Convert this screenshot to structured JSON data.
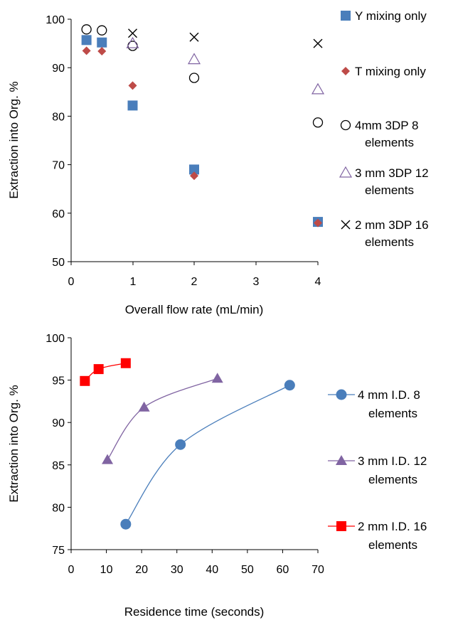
{
  "chart_data": [
    {
      "type": "scatter",
      "xlabel": "Overall flow rate (mL/min)",
      "ylabel": "Extraction into Org. %",
      "xlim": [
        0,
        4
      ],
      "ylim": [
        50,
        100
      ],
      "xtick_labels": [
        "0",
        "1",
        "2",
        "3",
        "4"
      ],
      "ytick_labels": [
        "50",
        "60",
        "70",
        "80",
        "90",
        "100"
      ],
      "x_axis_note": "x tick labels run 0,1,2,3,4 with the label 4 aligned to flow rate 4 (axis drawn with increasing spacing)",
      "legend_position": "right",
      "grid": false,
      "series": [
        {
          "name": "Y mixing only",
          "marker": "square",
          "color": "#4a7ebb",
          "points": [
            [
              0.25,
              95.7
            ],
            [
              0.5,
              95.2
            ],
            [
              1,
              82.2
            ],
            [
              2,
              69.0
            ],
            [
              4,
              58.2
            ]
          ]
        },
        {
          "name": "T mixing only",
          "marker": "diamond",
          "color": "#be4b48",
          "points": [
            [
              0.25,
              93.5
            ],
            [
              0.5,
              93.4
            ],
            [
              1,
              86.3
            ],
            [
              2,
              67.7
            ],
            [
              4,
              58.0
            ]
          ]
        },
        {
          "name": "4mm 3DP 8 elements",
          "marker": "circle-open",
          "color": "#000000",
          "points": [
            [
              0.25,
              97.9
            ],
            [
              0.5,
              97.7
            ],
            [
              1,
              94.5
            ],
            [
              2,
              87.9
            ],
            [
              4,
              78.7
            ]
          ]
        },
        {
          "name": "3 mm 3DP 12 elements",
          "marker": "triangle-open",
          "color": "#8064a2",
          "points": [
            [
              1,
              95.0
            ],
            [
              2,
              91.7
            ],
            [
              4,
              85.5
            ]
          ]
        },
        {
          "name": "2 mm 3DP 16 elements",
          "marker": "x",
          "color": "#000000",
          "points": [
            [
              1,
              97.1
            ],
            [
              2,
              96.3
            ],
            [
              4,
              95.0
            ]
          ]
        }
      ]
    },
    {
      "type": "line",
      "xlabel": "Residence time (seconds)",
      "ylabel": "Extraction into Org. %",
      "xlim": [
        0,
        70
      ],
      "ylim": [
        75,
        100
      ],
      "xtick_labels": [
        "0",
        "10",
        "20",
        "30",
        "40",
        "50",
        "60",
        "70"
      ],
      "ytick_labels": [
        "75",
        "80",
        "85",
        "90",
        "95",
        "100"
      ],
      "legend_position": "right",
      "grid": false,
      "smooth": true,
      "series": [
        {
          "name": "4 mm I.D. 8 elements",
          "marker": "circle",
          "color": "#4a7ebb",
          "line_color": "#4a7ebb",
          "points": [
            [
              15.5,
              78.0
            ],
            [
              31,
              87.4
            ],
            [
              62,
              94.4
            ]
          ]
        },
        {
          "name": "3 mm I.D. 12 elements",
          "marker": "triangle",
          "color": "#8064a2",
          "line_color": "#8064a2",
          "points": [
            [
              10.3,
              85.6
            ],
            [
              20.7,
              91.8
            ],
            [
              41.5,
              95.2
            ]
          ]
        },
        {
          "name": "2 mm I.D. 16 elements",
          "marker": "square",
          "color": "#ff0000",
          "line_color": "#ff0000",
          "points": [
            [
              3.9,
              94.9
            ],
            [
              7.8,
              96.3
            ],
            [
              15.5,
              97.0
            ]
          ]
        }
      ]
    }
  ]
}
